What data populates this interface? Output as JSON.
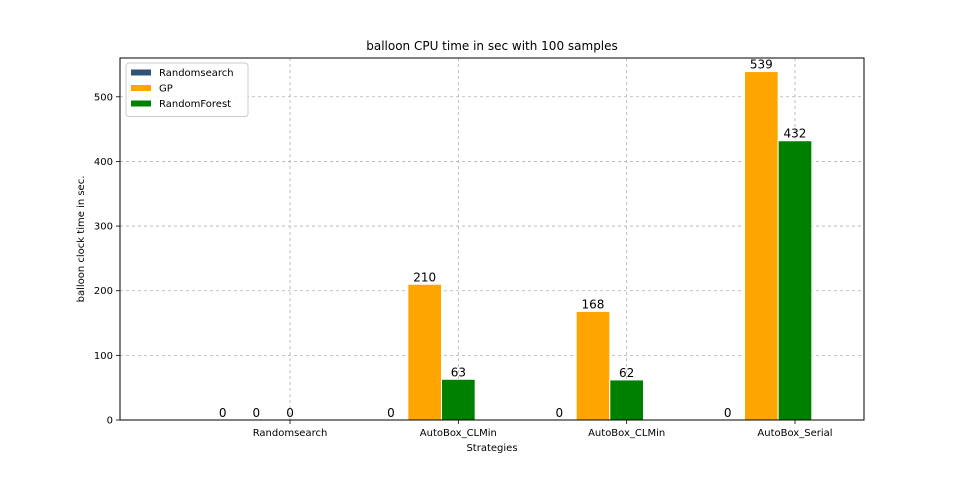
{
  "chart_data": {
    "type": "bar",
    "title": "balloon CPU time in sec with 100 samples",
    "xlabel": "Strategies",
    "ylabel": "balloon clock time in sec.",
    "categories": [
      "Randomsearch",
      "AutoBox_CLMin",
      "AutoBox_CLMin",
      "AutoBox_Serial"
    ],
    "ylim": [
      0,
      560
    ],
    "yticks": [
      0,
      100,
      200,
      300,
      400,
      500
    ],
    "grid": true,
    "legend_position": "top-left",
    "series": [
      {
        "name": "Randomsearch",
        "color": "#2d5478",
        "values": [
          0,
          0,
          0,
          0
        ]
      },
      {
        "name": "GP",
        "color": "#ffa500",
        "values": [
          0,
          210,
          168,
          539
        ]
      },
      {
        "name": "RandomForest",
        "color": "#008000",
        "values": [
          0,
          63,
          62,
          432
        ]
      }
    ]
  }
}
